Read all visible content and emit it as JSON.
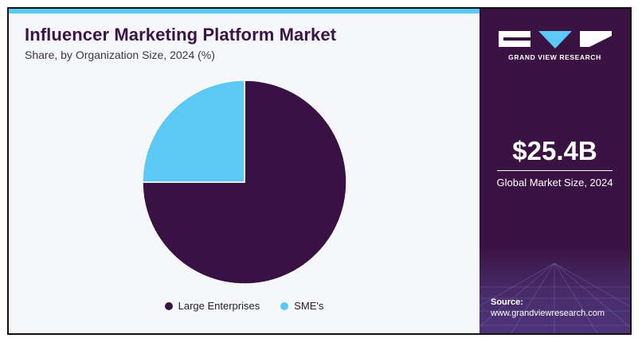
{
  "header": {
    "title": "Influencer Marketing Platform Market",
    "subtitle": "Share, by Organization Size, 2024 (%)"
  },
  "chart_data": {
    "type": "pie",
    "categories": [
      "Large Enterprises",
      "SME's"
    ],
    "values": [
      75,
      25
    ],
    "colors": [
      "#3a1145",
      "#5bc8f5"
    ],
    "legend_position": "bottom"
  },
  "sidebar": {
    "brand": "GRAND VIEW RESEARCH",
    "market_size": "$25.4B",
    "market_size_label": "Global Market Size, 2024",
    "source_title": "Source:",
    "source_url": "www.grandviewresearch.com"
  },
  "colors": {
    "title": "#3b1446",
    "sidebar_bg": "#3a1343",
    "accent": "#5bc8f5"
  }
}
